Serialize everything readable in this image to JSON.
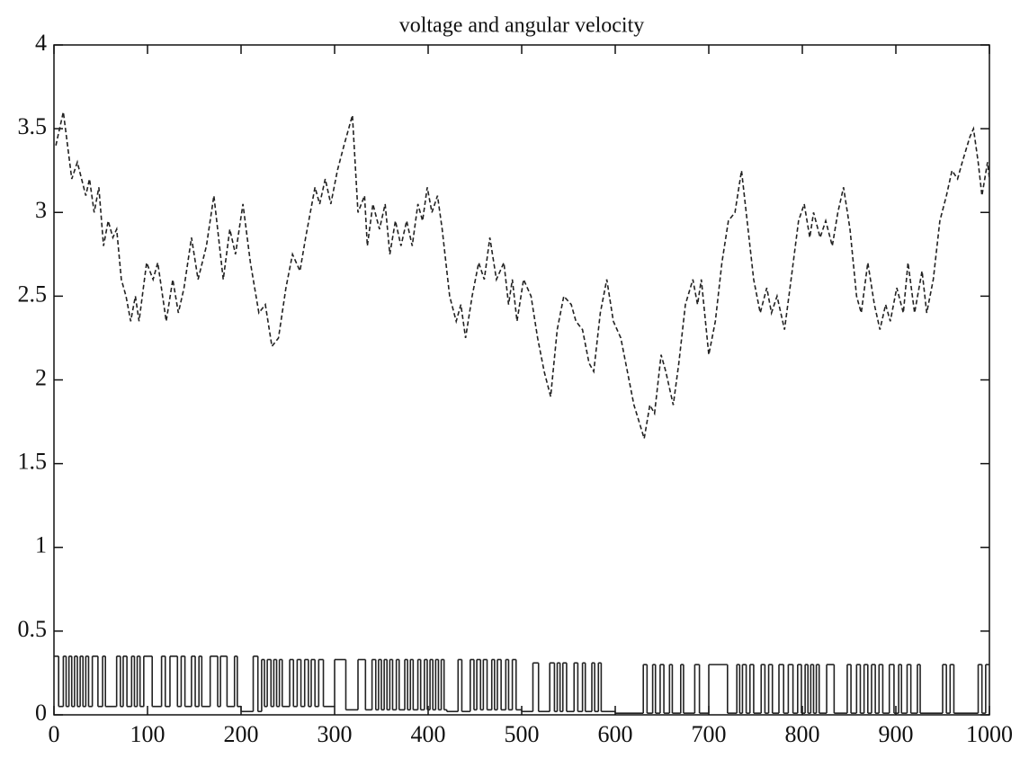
{
  "chart_data": {
    "type": "line",
    "title": "voltage and angular velocity",
    "xlim": [
      0,
      1000
    ],
    "xticks": [
      0,
      100,
      200,
      300,
      400,
      500,
      600,
      700,
      800,
      900,
      1000
    ],
    "ylim": [
      0,
      4
    ],
    "yticks": [
      0,
      0.5,
      1,
      1.5,
      2,
      2.5,
      3,
      3.5,
      4
    ],
    "series": [
      {
        "color": "#222222",
        "dashed": true,
        "step": false,
        "x": [
          2,
          10,
          19,
          25,
          34,
          38,
          43,
          48,
          53,
          58,
          63,
          67,
          72,
          77,
          82,
          87,
          91,
          99,
          106,
          111,
          120,
          127,
          133,
          139,
          147,
          154,
          163,
          171,
          181,
          188,
          194,
          202,
          210,
          219,
          226,
          233,
          240,
          248,
          255,
          263,
          269,
          279,
          284,
          290,
          296,
          303,
          310,
          319,
          325,
          332,
          335,
          341,
          348,
          354,
          359,
          365,
          371,
          377,
          383,
          389,
          394,
          399,
          404,
          410,
          415,
          423,
          430,
          435,
          440,
          447,
          454,
          460,
          466,
          473,
          481,
          486,
          490,
          495,
          502,
          510,
          517,
          524,
          531,
          538,
          545,
          553,
          558,
          565,
          572,
          577,
          584,
          591,
          598,
          606,
          613,
          620,
          631,
          637,
          642,
          649,
          654,
          662,
          668,
          675,
          683,
          688,
          692,
          700,
          707,
          714,
          721,
          728,
          735,
          740,
          748,
          755,
          762,
          767,
          773,
          781,
          788,
          796,
          802,
          808,
          812,
          819,
          825,
          832,
          838,
          844,
          851,
          858,
          863,
          870,
          877,
          883,
          889,
          894,
          901,
          908,
          913,
          920,
          928,
          933,
          940,
          947,
          954,
          960,
          966,
          971,
          979,
          983,
          988,
          992,
          998,
          1000
        ],
        "values": [
          3.4,
          3.6,
          3.2,
          3.3,
          3.1,
          3.2,
          3.0,
          3.15,
          2.8,
          2.95,
          2.85,
          2.9,
          2.6,
          2.5,
          2.35,
          2.5,
          2.35,
          2.7,
          2.6,
          2.7,
          2.35,
          2.6,
          2.4,
          2.55,
          2.85,
          2.6,
          2.8,
          3.1,
          2.6,
          2.9,
          2.75,
          3.05,
          2.7,
          2.4,
          2.45,
          2.2,
          2.25,
          2.55,
          2.75,
          2.65,
          2.85,
          3.15,
          3.05,
          3.2,
          3.05,
          3.25,
          3.4,
          3.58,
          3.0,
          3.1,
          2.8,
          3.05,
          2.9,
          3.05,
          2.75,
          2.95,
          2.8,
          2.95,
          2.8,
          3.05,
          2.95,
          3.15,
          3.0,
          3.1,
          2.9,
          2.5,
          2.35,
          2.45,
          2.25,
          2.5,
          2.7,
          2.6,
          2.85,
          2.6,
          2.7,
          2.45,
          2.6,
          2.35,
          2.6,
          2.5,
          2.25,
          2.05,
          1.9,
          2.3,
          2.5,
          2.45,
          2.35,
          2.3,
          2.1,
          2.05,
          2.4,
          2.6,
          2.35,
          2.25,
          2.05,
          1.85,
          1.65,
          1.85,
          1.8,
          2.15,
          2.05,
          1.85,
          2.1,
          2.45,
          2.6,
          2.45,
          2.6,
          2.15,
          2.35,
          2.7,
          2.95,
          3.0,
          3.25,
          3.0,
          2.6,
          2.4,
          2.55,
          2.4,
          2.5,
          2.3,
          2.6,
          2.95,
          3.05,
          2.85,
          3.0,
          2.85,
          2.95,
          2.8,
          3.0,
          3.15,
          2.9,
          2.5,
          2.4,
          2.7,
          2.45,
          2.3,
          2.45,
          2.35,
          2.55,
          2.4,
          2.7,
          2.4,
          2.65,
          2.4,
          2.6,
          2.95,
          3.1,
          3.25,
          3.2,
          3.3,
          3.45,
          3.5,
          3.3,
          3.1,
          3.3,
          3.2
        ]
      },
      {
        "color": "#222222",
        "dashed": false,
        "step": true,
        "x": [
          0,
          5,
          10,
          13,
          16,
          19,
          22,
          25,
          28,
          31,
          34,
          37,
          41,
          47,
          52,
          55,
          67,
          71,
          74,
          78,
          83,
          86,
          89,
          92,
          96,
          105,
          115,
          119,
          124,
          132,
          136,
          140,
          147,
          151,
          155,
          158,
          167,
          175,
          178,
          185,
          193,
          196,
          200,
          213,
          218,
          222,
          225,
          228,
          232,
          235,
          238,
          241,
          244,
          252,
          256,
          260,
          264,
          268,
          272,
          275,
          279,
          283,
          288,
          300,
          312,
          325,
          333,
          340,
          344,
          347,
          350,
          353,
          356,
          359,
          362,
          366,
          369,
          375,
          378,
          381,
          384,
          389,
          392,
          396,
          399,
          402,
          405,
          408,
          411,
          414,
          417,
          420,
          432,
          436,
          445,
          449,
          452,
          456,
          459,
          463,
          468,
          471,
          474,
          478,
          483,
          486,
          490,
          494,
          500,
          512,
          518,
          530,
          535,
          538,
          541,
          544,
          548,
          556,
          560,
          565,
          568,
          575,
          578,
          582,
          585,
          600,
          630,
          634,
          640,
          643,
          648,
          652,
          658,
          661,
          670,
          673,
          685,
          690,
          700,
          720,
          730,
          733,
          736,
          740,
          744,
          748,
          756,
          760,
          764,
          768,
          775,
          780,
          785,
          790,
          795,
          799,
          803,
          806,
          809,
          812,
          815,
          818,
          826,
          834,
          848,
          852,
          858,
          862,
          866,
          870,
          874,
          878,
          882,
          886,
          893,
          898,
          903,
          906,
          912,
          916,
          923,
          926,
          950,
          954,
          958,
          962,
          988,
          992,
          996,
          1000
        ],
        "values": [
          0.35,
          0.05,
          0.35,
          0.05,
          0.35,
          0.05,
          0.35,
          0.05,
          0.35,
          0.05,
          0.35,
          0.05,
          0.35,
          0.05,
          0.35,
          0.05,
          0.35,
          0.05,
          0.35,
          0.05,
          0.35,
          0.05,
          0.35,
          0.05,
          0.35,
          0.05,
          0.35,
          0.05,
          0.35,
          0.05,
          0.35,
          0.05,
          0.35,
          0.05,
          0.35,
          0.05,
          0.35,
          0.05,
          0.35,
          0.05,
          0.35,
          0.05,
          0.02,
          0.35,
          0.02,
          0.33,
          0.05,
          0.33,
          0.05,
          0.33,
          0.05,
          0.33,
          0.05,
          0.33,
          0.05,
          0.33,
          0.05,
          0.33,
          0.05,
          0.33,
          0.05,
          0.33,
          0.05,
          0.33,
          0.03,
          0.33,
          0.03,
          0.33,
          0.03,
          0.33,
          0.03,
          0.33,
          0.03,
          0.33,
          0.03,
          0.33,
          0.03,
          0.33,
          0.03,
          0.33,
          0.03,
          0.33,
          0.03,
          0.33,
          0.03,
          0.33,
          0.03,
          0.33,
          0.03,
          0.33,
          0.03,
          0.02,
          0.33,
          0.02,
          0.33,
          0.03,
          0.33,
          0.03,
          0.33,
          0.03,
          0.33,
          0.03,
          0.33,
          0.03,
          0.33,
          0.03,
          0.33,
          0.03,
          0.02,
          0.31,
          0.02,
          0.31,
          0.02,
          0.31,
          0.02,
          0.31,
          0.02,
          0.31,
          0.02,
          0.31,
          0.02,
          0.31,
          0.02,
          0.31,
          0.02,
          0.01,
          0.3,
          0.01,
          0.3,
          0.01,
          0.3,
          0.01,
          0.3,
          0.01,
          0.3,
          0.01,
          0.3,
          0.01,
          0.3,
          0.01,
          0.3,
          0.01,
          0.3,
          0.01,
          0.3,
          0.01,
          0.3,
          0.01,
          0.3,
          0.01,
          0.3,
          0.01,
          0.3,
          0.01,
          0.3,
          0.01,
          0.3,
          0.01,
          0.3,
          0.01,
          0.3,
          0.01,
          0.3,
          0.01,
          0.3,
          0.01,
          0.3,
          0.01,
          0.3,
          0.01,
          0.3,
          0.01,
          0.3,
          0.01,
          0.3,
          0.01,
          0.3,
          0.01,
          0.3,
          0.01,
          0.3,
          0.01,
          0.3,
          0.01,
          0.3,
          0.01,
          0.3,
          0.01,
          0.3,
          0.3
        ]
      }
    ]
  }
}
